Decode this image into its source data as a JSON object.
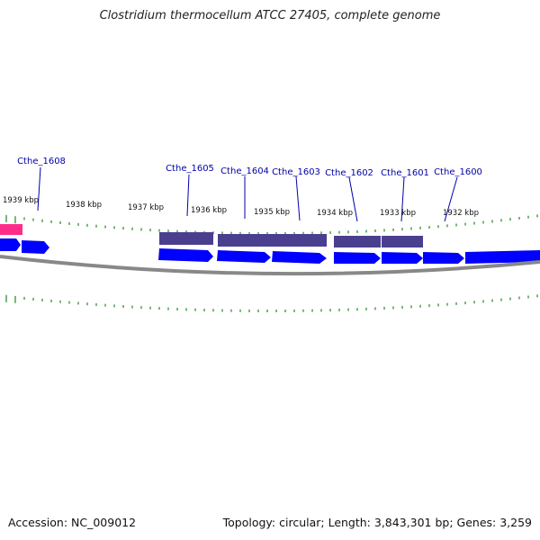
{
  "title": "Clostridium thermocellum ATCC 27405, complete genome",
  "footer": {
    "accession": "Accession: NC_009012",
    "summary": "Topology: circular; Length: 3,843,301 bp; Genes: 3,259"
  },
  "colors": {
    "label": "#0000aa",
    "cds": "#0000ff",
    "feature": "#4a3f8f",
    "rrna": "#ff2d8a",
    "tick": "#1a8a1a",
    "backbone": "#888888"
  },
  "ruler": {
    "labels": [
      "1939 kbp",
      "1938 kbp",
      "1937 kbp",
      "1936 kbp",
      "1935 kbp",
      "1934 kbp",
      "1933 kbp",
      "1932 kbp"
    ]
  },
  "gene_labels": [
    "Cthe_1608",
    "Cthe_1605",
    "Cthe_1604",
    "Cthe_1603",
    "Cthe_1602",
    "Cthe_1601",
    "Cthe_1600"
  ]
}
